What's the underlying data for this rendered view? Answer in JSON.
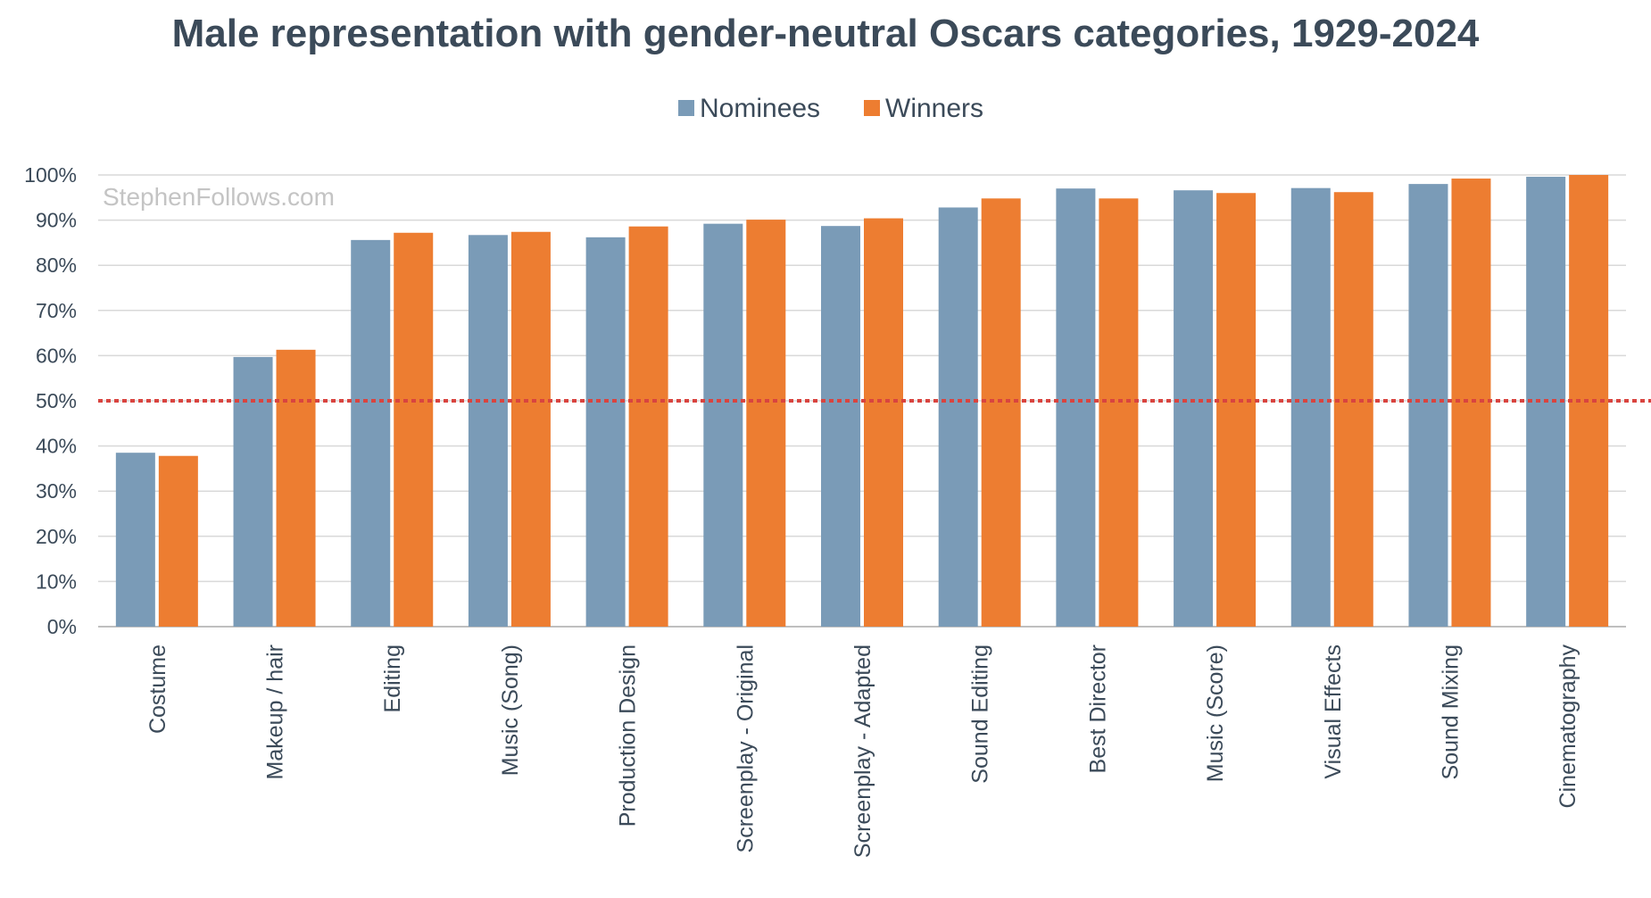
{
  "chart_data": {
    "type": "bar",
    "title": "Male representation with gender-neutral Oscars categories, 1929-2024",
    "watermark": "StephenFollows.com",
    "xlabel": "",
    "ylabel": "",
    "ylim": [
      0,
      100
    ],
    "y_ticks": [
      0,
      10,
      20,
      30,
      40,
      50,
      60,
      70,
      80,
      90,
      100
    ],
    "y_tick_labels": [
      "0%",
      "10%",
      "20%",
      "30%",
      "40%",
      "50%",
      "60%",
      "70%",
      "80%",
      "90%",
      "100%"
    ],
    "grid": true,
    "legend_position": "top-center",
    "reference_line": {
      "value": 50,
      "style": "dotted",
      "color": "#d9443f"
    },
    "categories": [
      "Costume",
      "Makeup / hair",
      "Editing",
      "Music (Song)",
      "Production Design",
      "Screenplay - Original",
      "Screenplay - Adapted",
      "Sound Editing",
      "Best Director",
      "Music (Score)",
      "Visual Effects",
      "Sound Mixing",
      "Cinematography"
    ],
    "series": [
      {
        "name": "Nominees",
        "color": "#7a9bb7",
        "values": [
          38.5,
          59.7,
          85.6,
          86.7,
          86.2,
          89.2,
          88.7,
          92.8,
          97.0,
          96.6,
          97.1,
          98.0,
          99.6
        ]
      },
      {
        "name": "Winners",
        "color": "#ed7d31",
        "values": [
          37.8,
          61.3,
          87.2,
          87.4,
          88.6,
          90.1,
          90.4,
          94.8,
          94.8,
          96.0,
          96.2,
          99.2,
          100.0
        ]
      }
    ]
  }
}
